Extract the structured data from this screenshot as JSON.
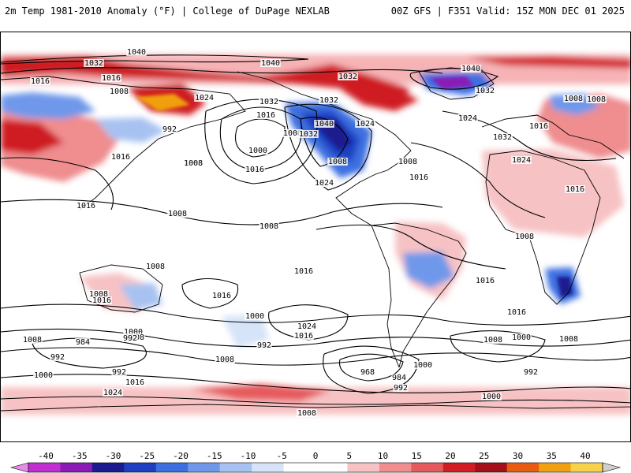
{
  "header": {
    "left_title": "2m Temp 1981-2010 Anomaly (°F) | College of DuPage NEXLAB",
    "right_title": "00Z GFS | F351 Valid: 15Z MON DEC 01 2025"
  },
  "colorbar": {
    "ticks": [
      "-40",
      "-35",
      "-30",
      "-25",
      "-20",
      "-15",
      "-10",
      "-5",
      "0",
      "5",
      "10",
      "15",
      "20",
      "25",
      "30",
      "35",
      "40"
    ],
    "colors": [
      "#e58ce8",
      "#c22fd1",
      "#8a1bb5",
      "#1b1b8f",
      "#1f3fc0",
      "#3d6fe0",
      "#6f98ea",
      "#a7c2f1",
      "#d6e3f8",
      "#ffffff",
      "#ffffff",
      "#f7c2c4",
      "#ef8d8f",
      "#e55a5d",
      "#cf1f24",
      "#a3101a",
      "#e85c12",
      "#f0a010",
      "#f6d24a",
      "#cfcfcf"
    ]
  },
  "isobar_labels": [
    "1032",
    "1040",
    "1040",
    "1016",
    "1016",
    "1008",
    "1024",
    "992",
    "1016",
    "1032",
    "1016",
    "1008",
    "1000",
    "1016",
    "1008",
    "1032",
    "1032",
    "1040",
    "1032",
    "1024",
    "1040",
    "1032",
    "1008",
    "1008",
    "1016",
    "1024",
    "1008",
    "1024",
    "1032",
    "1024",
    "1016",
    "1016",
    "1008",
    "1008",
    "1008",
    "1016",
    "1008",
    "1008",
    "1016",
    "1016",
    "1016",
    "1016",
    "1008",
    "1008",
    "1016",
    "1000",
    "1008",
    "1000",
    "992",
    "1008",
    "1024",
    "992",
    "1016",
    "992",
    "1008",
    "1000",
    "984",
    "992",
    "1016",
    "1024",
    "1000",
    "968",
    "984",
    "992",
    "1008",
    "1008",
    "1000",
    "992",
    "1000",
    "1008"
  ]
}
